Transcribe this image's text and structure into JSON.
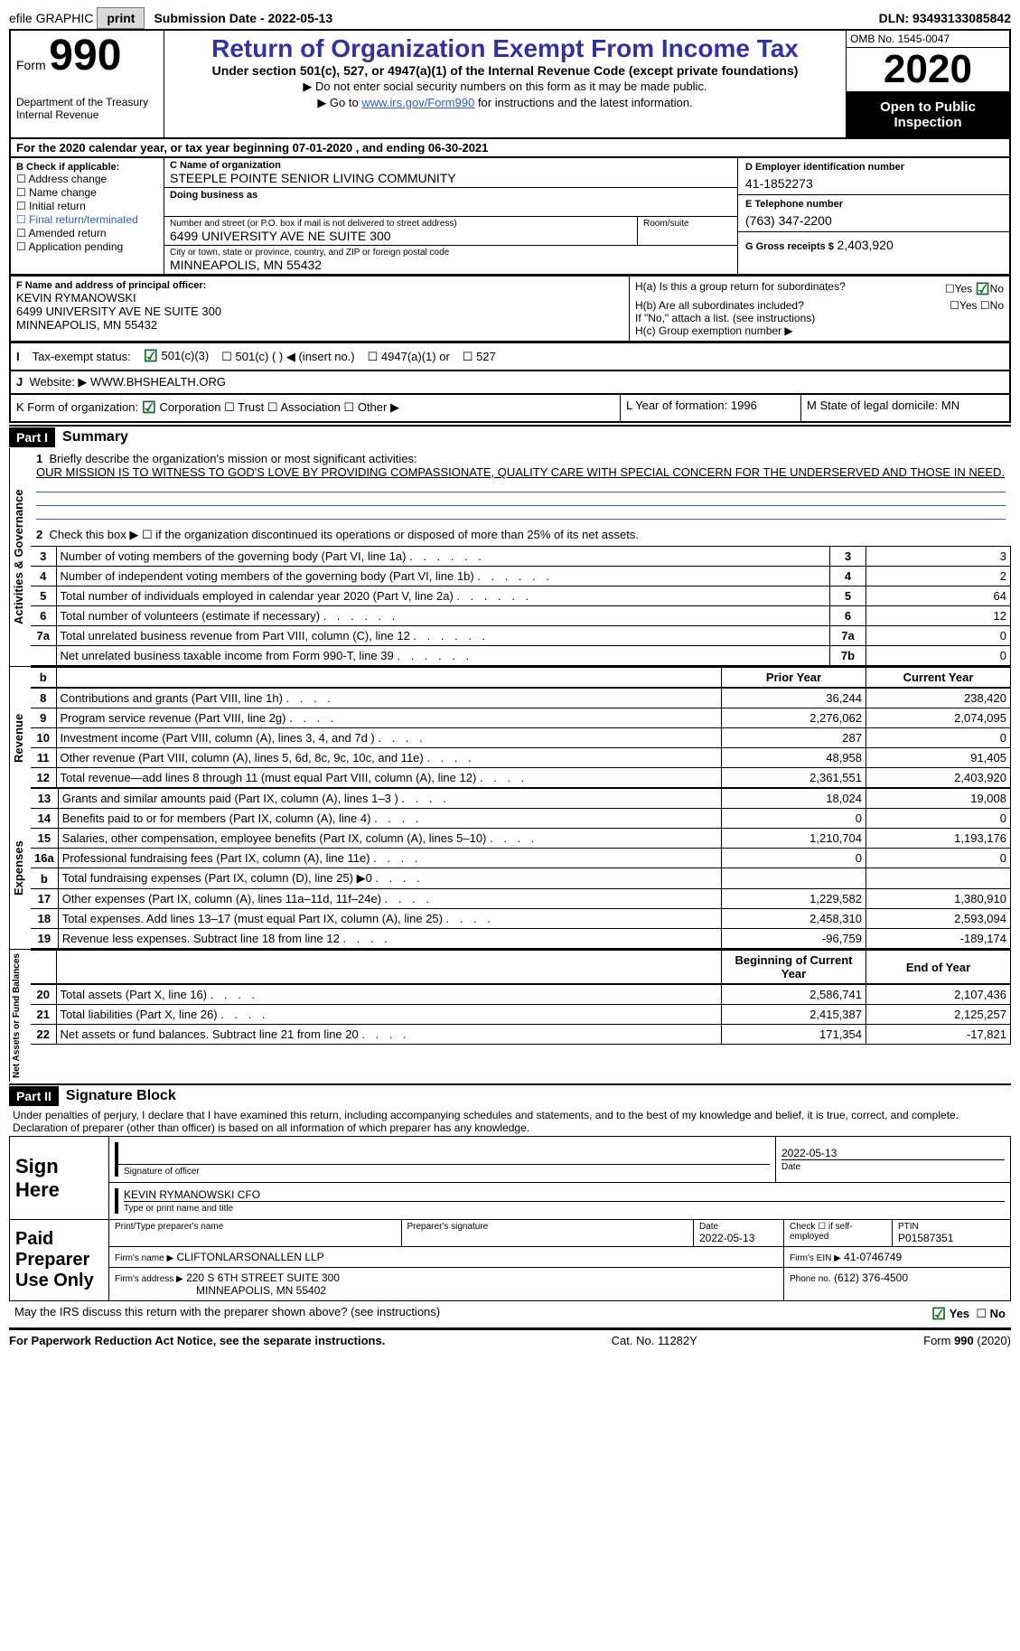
{
  "topbar": {
    "efile": "efile GRAPHIC",
    "print": "print",
    "submission": "Submission Date - 2022-05-13",
    "dln": "DLN: 93493133085842"
  },
  "header": {
    "form_label": "Form",
    "form_no": "990",
    "dept1": "Department of the Treasury",
    "dept2": "Internal Revenue",
    "title": "Return of Organization Exempt From Income Tax",
    "subtitle": "Under section 501(c), 527, or 4947(a)(1) of the Internal Revenue Code (except private foundations)",
    "bullet1": "▶ Do not enter social security numbers on this form as it may be made public.",
    "bullet2_pre": "▶ Go to ",
    "bullet2_link": "www.irs.gov/Form990",
    "bullet2_post": " for instructions and the latest information.",
    "omb": "OMB No. 1545-0047",
    "year": "2020",
    "open": "Open to Public Inspection"
  },
  "A_line": "For the 2020 calendar year, or tax year beginning 07-01-2020   , and ending 06-30-2021",
  "B": {
    "label": "B Check if applicable:",
    "items": [
      "Address change",
      "Name change",
      "Initial return",
      "Final return/terminated",
      "Amended return",
      "Application pending"
    ]
  },
  "C": {
    "name_lbl": "C Name of organization",
    "name_val": "STEEPLE POINTE SENIOR LIVING COMMUNITY",
    "dba_lbl": "Doing business as",
    "addr_lbl": "Number and street (or P.O. box if mail is not delivered to street address)",
    "room_lbl": "Room/suite",
    "addr_val": "6499 UNIVERSITY AVE NE SUITE 300",
    "city_lbl": "City or town, state or province, country, and ZIP or foreign postal code",
    "city_val": "MINNEAPOLIS, MN  55432"
  },
  "D": {
    "lbl": "D Employer identification number",
    "val": "41-1852273"
  },
  "E": {
    "lbl": "E Telephone number",
    "val": "(763) 347-2200"
  },
  "G": {
    "lbl": "G Gross receipts $",
    "val": "2,403,920"
  },
  "F": {
    "lbl": "F Name and address of principal officer:",
    "name": "KEVIN RYMANOWSKI",
    "addr1": "6499 UNIVERSITY AVE NE SUITE 300",
    "addr2": "MINNEAPOLIS, MN  55432"
  },
  "H": {
    "a": "H(a)  Is this a group return for subordinates?",
    "b": "H(b)  Are all subordinates included?",
    "b_note": "If \"No,\" attach a list. (see instructions)",
    "c": "H(c)  Group exemption number ▶",
    "yn_yes": "Yes",
    "yn_no": "No"
  },
  "I": {
    "lbl": "Tax-exempt status:",
    "o1": "501(c)(3)",
    "o2": "501(c) (  ) ◀ (insert no.)",
    "o3": "4947(a)(1) or",
    "o4": "527"
  },
  "J": {
    "lbl": "Website: ▶",
    "val": "WWW.BHSHEALTH.ORG"
  },
  "K": {
    "lbl": "K Form of organization:",
    "corp": "Corporation",
    "trust": "Trust",
    "assoc": "Association",
    "other": "Other ▶"
  },
  "L": {
    "lbl": "L Year of formation:",
    "val": "1996"
  },
  "M": {
    "lbl": "M State of legal domicile:",
    "val": "MN"
  },
  "part1": {
    "label": "Part I",
    "title": "Summary"
  },
  "q1": {
    "lbl": "Briefly describe the organization's mission or most significant activities:",
    "text": "OUR MISSION IS TO WITNESS TO GOD'S LOVE BY PROVIDING COMPASSIONATE, QUALITY CARE WITH SPECIAL CONCERN FOR THE UNDERSERVED AND THOSE IN NEED."
  },
  "q2": "Check this box ▶ ☐  if the organization discontinued its operations or disposed of more than 25% of its net assets.",
  "gov_rows": [
    {
      "n": "3",
      "d": "Number of voting members of the governing body (Part VI, line 1a)",
      "box": "3",
      "v": "3"
    },
    {
      "n": "4",
      "d": "Number of independent voting members of the governing body (Part VI, line 1b)",
      "box": "4",
      "v": "2"
    },
    {
      "n": "5",
      "d": "Total number of individuals employed in calendar year 2020 (Part V, line 2a)",
      "box": "5",
      "v": "64"
    },
    {
      "n": "6",
      "d": "Total number of volunteers (estimate if necessary)",
      "box": "6",
      "v": "12"
    },
    {
      "n": "7a",
      "d": "Total unrelated business revenue from Part VIII, column (C), line 12",
      "box": "7a",
      "v": "0"
    },
    {
      "n": "",
      "d": "Net unrelated business taxable income from Form 990-T, line 39",
      "box": "7b",
      "v": "0"
    }
  ],
  "colhdr": {
    "b": "b",
    "py": "Prior Year",
    "cy": "Current Year"
  },
  "rev_rows": [
    {
      "n": "8",
      "d": "Contributions and grants (Part VIII, line 1h)",
      "py": "36,244",
      "cy": "238,420"
    },
    {
      "n": "9",
      "d": "Program service revenue (Part VIII, line 2g)",
      "py": "2,276,062",
      "cy": "2,074,095"
    },
    {
      "n": "10",
      "d": "Investment income (Part VIII, column (A), lines 3, 4, and 7d )",
      "py": "287",
      "cy": "0"
    },
    {
      "n": "11",
      "d": "Other revenue (Part VIII, column (A), lines 5, 6d, 8c, 9c, 10c, and 11e)",
      "py": "48,958",
      "cy": "91,405"
    },
    {
      "n": "12",
      "d": "Total revenue—add lines 8 through 11 (must equal Part VIII, column (A), line 12)",
      "py": "2,361,551",
      "cy": "2,403,920"
    }
  ],
  "exp_rows": [
    {
      "n": "13",
      "d": "Grants and similar amounts paid (Part IX, column (A), lines 1–3 )",
      "py": "18,024",
      "cy": "19,008"
    },
    {
      "n": "14",
      "d": "Benefits paid to or for members (Part IX, column (A), line 4)",
      "py": "0",
      "cy": "0"
    },
    {
      "n": "15",
      "d": "Salaries, other compensation, employee benefits (Part IX, column (A), lines 5–10)",
      "py": "1,210,704",
      "cy": "1,193,176"
    },
    {
      "n": "16a",
      "d": "Professional fundraising fees (Part IX, column (A), line 11e)",
      "py": "0",
      "cy": "0"
    },
    {
      "n": "b",
      "d": "Total fundraising expenses (Part IX, column (D), line 25) ▶0",
      "py": "",
      "cy": "",
      "grey": true
    },
    {
      "n": "17",
      "d": "Other expenses (Part IX, column (A), lines 11a–11d, 11f–24e)",
      "py": "1,229,582",
      "cy": "1,380,910"
    },
    {
      "n": "18",
      "d": "Total expenses. Add lines 13–17 (must equal Part IX, column (A), line 25)",
      "py": "2,458,310",
      "cy": "2,593,094"
    },
    {
      "n": "19",
      "d": "Revenue less expenses. Subtract line 18 from line 12",
      "py": "-96,759",
      "cy": "-189,174"
    }
  ],
  "net_hdr": {
    "b": "Beginning of Current Year",
    "e": "End of Year"
  },
  "net_rows": [
    {
      "n": "20",
      "d": "Total assets (Part X, line 16)",
      "py": "2,586,741",
      "cy": "2,107,436"
    },
    {
      "n": "21",
      "d": "Total liabilities (Part X, line 26)",
      "py": "2,415,387",
      "cy": "2,125,257"
    },
    {
      "n": "22",
      "d": "Net assets or fund balances. Subtract line 21 from line 20",
      "py": "171,354",
      "cy": "-17,821"
    }
  ],
  "part2": {
    "label": "Part II",
    "title": "Signature Block"
  },
  "sig": {
    "decl": "Under penalties of perjury, I declare that I have examined this return, including accompanying schedules and statements, and to the best of my knowledge and belief, it is true, correct, and complete. Declaration of preparer (other than officer) is based on all information of which preparer has any knowledge.",
    "sign_here": "Sign Here",
    "sig_officer": "Signature of officer",
    "sig_date_lbl": "Date",
    "sig_date": "2022-05-13",
    "officer_name": "KEVIN RYMANOWSKI CFO",
    "type_name": "Type or print name and title",
    "paid_use": "Paid Preparer Use Only",
    "prep_name_lbl": "Print/Type preparer's name",
    "prep_sig_lbl": "Preparer's signature",
    "prep_date_lbl": "Date",
    "prep_date": "2022-05-13",
    "self_emp": "Check ☐ if self-employed",
    "ptin_lbl": "PTIN",
    "ptin": "P01587351",
    "firm_name_lbl": "Firm's name   ▶",
    "firm_name": "CLIFTONLARSONALLEN LLP",
    "firm_ein_lbl": "Firm's EIN ▶",
    "firm_ein": "41-0746749",
    "firm_addr_lbl": "Firm's address ▶",
    "firm_addr1": "220 S 6TH STREET SUITE 300",
    "firm_addr2": "MINNEAPOLIS, MN  55402",
    "phone_lbl": "Phone no.",
    "phone": "(612) 376-4500"
  },
  "discuss": "May the IRS discuss this return with the preparer shown above? (see instructions)",
  "footer": {
    "left": "For Paperwork Reduction Act Notice, see the separate instructions.",
    "mid": "Cat. No. 11282Y",
    "right": "Form 990 (2020)"
  },
  "vlabels": {
    "gov": "Activities & Governance",
    "rev": "Revenue",
    "exp": "Expenses",
    "net": "Net Assets or Fund Balances"
  },
  "colors": {
    "accent": "#343399",
    "link": "#2e5db0",
    "check": "#1a6b2e",
    "grey": "#cfcfcf"
  }
}
